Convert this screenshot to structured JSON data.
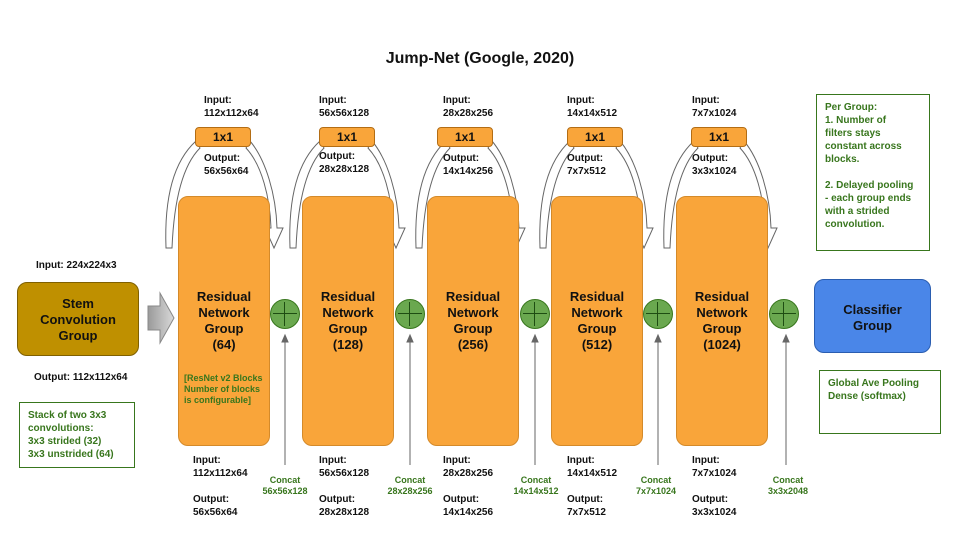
{
  "title": "Jump-Net (Google, 2020)",
  "stem": {
    "input": "Input: 224x224x3",
    "label_lines": [
      "Stem",
      "Convolution",
      "Group"
    ],
    "output": "Output: 112x112x64",
    "note_lines": [
      "Stack of two 3x3",
      "convolutions:",
      "3x3 strided (32)",
      "3x3 unstrided (64)"
    ]
  },
  "conv1x1_label": "1x1",
  "group_line1": "Residual",
  "group_line2": "Network",
  "group_line3": "Group",
  "resnet_note_lines": [
    "[ResNet v2 Blocks",
    "Number of blocks",
    "is configurable]"
  ],
  "groups": [
    {
      "filters": "(64)",
      "top_in": [
        "Input:",
        "112x112x64"
      ],
      "top_out": [
        "Output:",
        "56x56x64"
      ],
      "bot_in": [
        "Input:",
        "112x112x64"
      ],
      "bot_out": [
        "Output:",
        "56x56x64"
      ],
      "concat": [
        "Concat",
        "56x56x128"
      ]
    },
    {
      "filters": "(128)",
      "top_in": [
        "Input:",
        "56x56x128"
      ],
      "top_out": [
        "Output:",
        "28x28x128"
      ],
      "bot_in": [
        "Input:",
        "56x56x128"
      ],
      "bot_out": [
        "Output:",
        "28x28x128"
      ],
      "concat": [
        "Concat",
        "28x28x256"
      ]
    },
    {
      "filters": "(256)",
      "top_in": [
        "Input:",
        "28x28x256"
      ],
      "top_out": [
        "Output:",
        "14x14x256"
      ],
      "bot_in": [
        "Input:",
        "28x28x256"
      ],
      "bot_out": [
        "Output:",
        "14x14x256"
      ],
      "concat": [
        "Concat",
        "14x14x512"
      ]
    },
    {
      "filters": "(512)",
      "top_in": [
        "Input:",
        "14x14x512"
      ],
      "top_out": [
        "Output:",
        "7x7x512"
      ],
      "bot_in": [
        "Input:",
        "14x14x512"
      ],
      "bot_out": [
        "Output:",
        "7x7x512"
      ],
      "concat": [
        "Concat",
        "7x7x1024"
      ]
    },
    {
      "filters": "(1024)",
      "top_in": [
        "Input:",
        "7x7x1024"
      ],
      "top_out": [
        "Output:",
        "3x3x1024"
      ],
      "bot_in": [
        "Input:",
        "7x7x1024"
      ],
      "bot_out": [
        "Output:",
        "3x3x1024"
      ],
      "concat": [
        "Concat",
        "3x3x2048"
      ]
    }
  ],
  "per_group_note_lines": [
    "Per Group:",
    "1. Number of",
    "filters stays",
    "constant across",
    "blocks.",
    "",
    "2. Delayed pooling",
    "- each group ends",
    "with a strided",
    "convolution."
  ],
  "classifier": {
    "label_lines": [
      "Classifier",
      "Group"
    ],
    "note_lines": [
      "Global Ave Pooling",
      "Dense (softmax)"
    ]
  },
  "colors": {
    "group_fill": "#f9a53a",
    "stem_fill": "#bf9000",
    "classifier_fill": "#4a86e8",
    "concat_fill": "#6aa84f",
    "note_text": "#38761d"
  }
}
